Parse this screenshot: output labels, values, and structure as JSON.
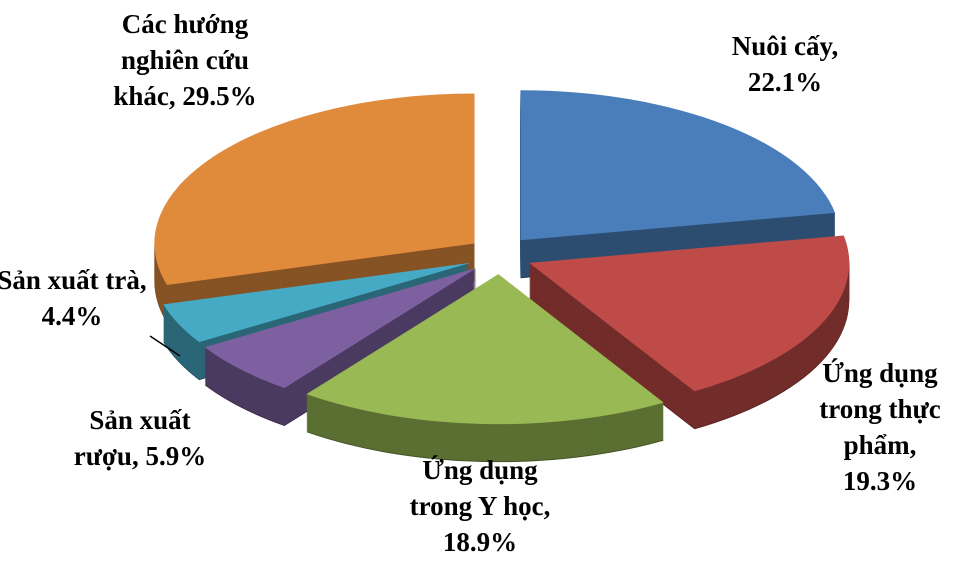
{
  "chart_data": {
    "type": "pie",
    "values": [
      22.1,
      19.3,
      18.9,
      5.9,
      4.4,
      29.5
    ],
    "value_labels": [
      "Nuôi cấy, 22.1%",
      "Ứng dụng trong thực phẩm, 19.3%",
      "Ứng dụng trong Y học, 18.9%",
      "Sản xuất rượu, 5.9%",
      "Sản xuất trà, 4.4%",
      "Các hướng nghiên cứu khác, 29.5%"
    ],
    "colors": [
      "#4a7ebb",
      "#be4b48",
      "#98b954",
      "#7d60a0",
      "#46aac5",
      "#e08a3c"
    ]
  }
}
